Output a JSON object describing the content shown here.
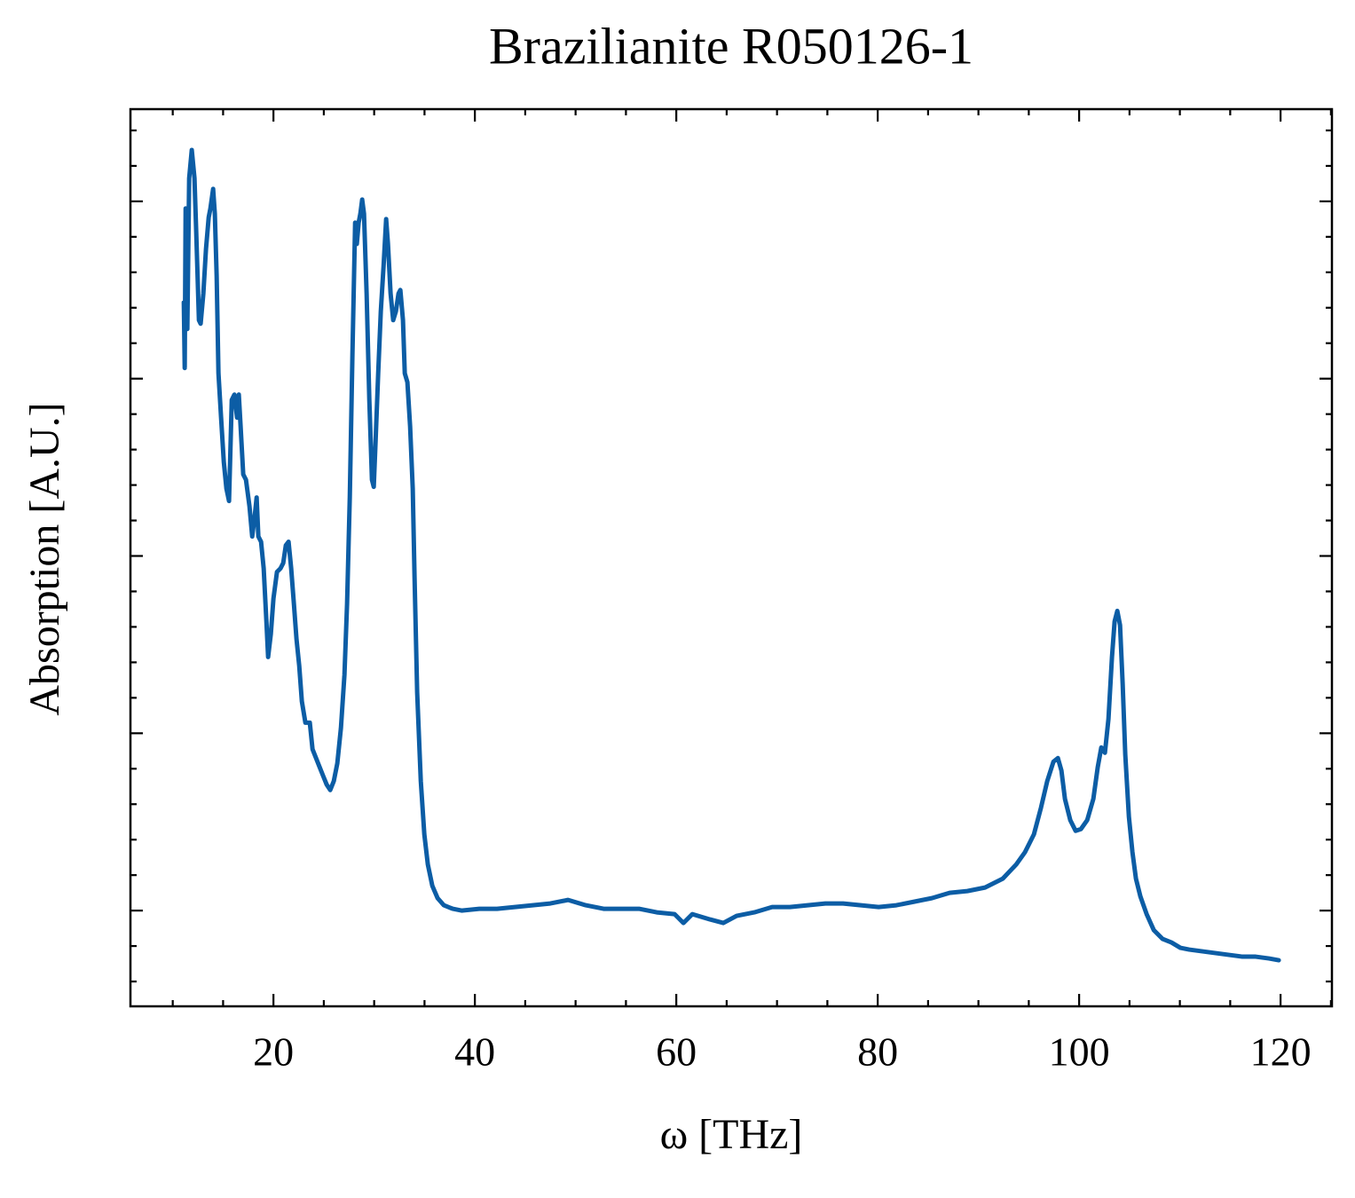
{
  "chart_data": {
    "type": "line",
    "title": "Brazilianite R050126-1",
    "xlabel": "ω [THz]",
    "ylabel": "Absorption [A.U.]",
    "color": "#0c5da5",
    "xlim": [
      5.8,
      125.1
    ],
    "xticks": [
      20,
      40,
      60,
      80,
      100,
      120
    ],
    "xminorticks": [
      10,
      15,
      25,
      30,
      35,
      45,
      50,
      55,
      65,
      70,
      75,
      85,
      90,
      95,
      105,
      110,
      115,
      125
    ],
    "ylim": [
      -0.54,
      4.52
    ],
    "yticks": [
      0,
      1,
      2,
      3,
      4
    ],
    "yminorticks": [
      -0.4,
      -0.2,
      0.2,
      0.4,
      0.6,
      0.8,
      1.2,
      1.4,
      1.6,
      1.8,
      2.2,
      2.4,
      2.6,
      2.8,
      3.2,
      3.4,
      3.6,
      3.8,
      4.2,
      4.4
    ],
    "x": [
      11.1,
      11.19,
      11.28,
      11.45,
      11.63,
      11.89,
      12.16,
      12.33,
      12.6,
      12.77,
      13.04,
      13.3,
      13.57,
      13.74,
      14.01,
      14.18,
      14.36,
      14.54,
      14.8,
      15.07,
      15.33,
      15.59,
      15.86,
      16.12,
      16.39,
      16.56,
      16.74,
      17.0,
      17.27,
      17.62,
      17.89,
      18.15,
      18.33,
      18.5,
      18.77,
      19.03,
      19.3,
      19.47,
      19.74,
      20.0,
      20.35,
      20.7,
      20.97,
      21.23,
      21.5,
      21.76,
      22.03,
      22.29,
      22.56,
      22.82,
      23.17,
      23.61,
      23.88,
      24.23,
      24.58,
      24.93,
      25.29,
      25.64,
      25.99,
      26.34,
      26.7,
      27.05,
      27.31,
      27.58,
      27.84,
      28.11,
      28.28,
      28.46,
      28.63,
      28.81,
      28.99,
      29.25,
      29.52,
      29.78,
      29.96,
      30.13,
      30.4,
      30.66,
      30.93,
      31.19,
      31.37,
      31.63,
      31.89,
      32.16,
      32.42,
      32.6,
      32.86,
      33.04,
      33.3,
      33.57,
      33.83,
      34.01,
      34.27,
      34.63,
      34.98,
      35.33,
      35.77,
      36.3,
      36.92,
      37.8,
      38.68,
      40.44,
      42.2,
      43.97,
      45.73,
      47.49,
      49.25,
      51.01,
      52.78,
      54.54,
      56.3,
      58.06,
      59.83,
      60.71,
      61.59,
      63.35,
      64.67,
      65.99,
      67.75,
      69.52,
      71.28,
      73.04,
      74.8,
      76.56,
      78.33,
      80.09,
      81.85,
      83.61,
      85.37,
      87.14,
      88.9,
      90.66,
      92.42,
      93.75,
      94.63,
      95.51,
      96.21,
      96.83,
      97.45,
      97.89,
      98.24,
      98.59,
      99.12,
      99.65,
      100.18,
      100.8,
      101.41,
      101.85,
      102.2,
      102.56,
      102.91,
      103.26,
      103.52,
      103.79,
      104.06,
      104.32,
      104.58,
      104.94,
      105.29,
      105.64,
      106.08,
      106.7,
      107.41,
      108.29,
      109.17,
      110.05,
      110.93,
      112.25,
      113.57,
      114.89,
      116.21,
      117.53,
      118.85,
      119.82
    ],
    "values": [
      3.43,
      3.06,
      3.96,
      3.28,
      4.13,
      4.29,
      4.13,
      3.83,
      3.33,
      3.31,
      3.48,
      3.73,
      3.91,
      3.96,
      4.07,
      3.93,
      3.58,
      3.03,
      2.78,
      2.53,
      2.38,
      2.31,
      2.88,
      2.91,
      2.78,
      2.91,
      2.73,
      2.46,
      2.43,
      2.28,
      2.11,
      2.23,
      2.33,
      2.11,
      2.08,
      1.93,
      1.63,
      1.43,
      1.56,
      1.76,
      1.91,
      1.93,
      1.96,
      2.06,
      2.08,
      1.93,
      1.73,
      1.53,
      1.38,
      1.18,
      1.06,
      1.06,
      0.91,
      0.86,
      0.81,
      0.76,
      0.71,
      0.68,
      0.73,
      0.83,
      1.03,
      1.33,
      1.73,
      2.33,
      3.13,
      3.88,
      3.76,
      3.88,
      3.93,
      4.01,
      3.93,
      3.48,
      2.88,
      2.43,
      2.39,
      2.63,
      3.03,
      3.38,
      3.63,
      3.9,
      3.76,
      3.48,
      3.33,
      3.38,
      3.48,
      3.5,
      3.33,
      3.03,
      2.98,
      2.73,
      2.38,
      1.88,
      1.23,
      0.73,
      0.43,
      0.26,
      0.14,
      0.07,
      0.03,
      0.01,
      0.0,
      0.01,
      0.01,
      0.02,
      0.03,
      0.04,
      0.06,
      0.03,
      0.01,
      0.01,
      0.01,
      -0.01,
      -0.02,
      -0.07,
      -0.02,
      -0.05,
      -0.07,
      -0.03,
      -0.01,
      0.02,
      0.02,
      0.03,
      0.04,
      0.04,
      0.03,
      0.02,
      0.03,
      0.05,
      0.07,
      0.1,
      0.11,
      0.13,
      0.18,
      0.26,
      0.33,
      0.43,
      0.58,
      0.73,
      0.84,
      0.86,
      0.79,
      0.63,
      0.51,
      0.45,
      0.46,
      0.51,
      0.63,
      0.81,
      0.92,
      0.89,
      1.08,
      1.43,
      1.63,
      1.69,
      1.61,
      1.28,
      0.88,
      0.53,
      0.33,
      0.18,
      0.08,
      -0.02,
      -0.11,
      -0.16,
      -0.18,
      -0.21,
      -0.22,
      -0.23,
      -0.24,
      -0.25,
      -0.26,
      -0.26,
      -0.27,
      -0.28
    ]
  }
}
